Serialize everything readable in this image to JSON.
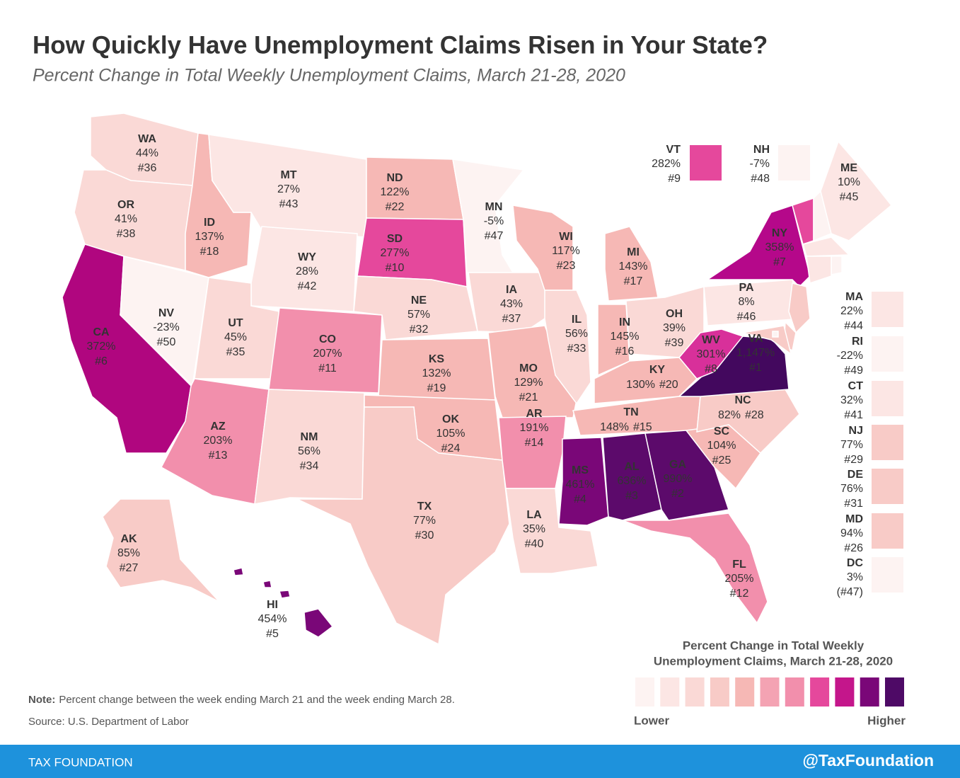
{
  "header": {
    "title": "How Quickly Have Unemployment Claims Risen in Your State?",
    "subtitle": "Percent Change in Total Weekly Unemployment Claims, March 21-28, 2020"
  },
  "states": [
    {
      "abbr": "WA",
      "change": "44%",
      "rank": "#36",
      "color": "#fad9d6"
    },
    {
      "abbr": "OR",
      "change": "41%",
      "rank": "#38",
      "color": "#fad9d6"
    },
    {
      "abbr": "CA",
      "change": "372%",
      "rank": "#6",
      "color": "#b0067f"
    },
    {
      "abbr": "NV",
      "change": "-23%",
      "rank": "#50",
      "color": "#fdf3f2"
    },
    {
      "abbr": "ID",
      "change": "137%",
      "rank": "#18",
      "color": "#f6b8b5"
    },
    {
      "abbr": "MT",
      "change": "27%",
      "rank": "#43",
      "color": "#fce6e4"
    },
    {
      "abbr": "WY",
      "change": "28%",
      "rank": "#42",
      "color": "#fce6e4"
    },
    {
      "abbr": "UT",
      "change": "45%",
      "rank": "#35",
      "color": "#fad9d6"
    },
    {
      "abbr": "CO",
      "change": "207%",
      "rank": "#11",
      "color": "#f28fac"
    },
    {
      "abbr": "AZ",
      "change": "203%",
      "rank": "#13",
      "color": "#f28fac"
    },
    {
      "abbr": "NM",
      "change": "56%",
      "rank": "#34",
      "color": "#fad9d6"
    },
    {
      "abbr": "ND",
      "change": "122%",
      "rank": "#22",
      "color": "#f6b8b5"
    },
    {
      "abbr": "SD",
      "change": "277%",
      "rank": "#10",
      "color": "#e5489c"
    },
    {
      "abbr": "NE",
      "change": "57%",
      "rank": "#32",
      "color": "#fad9d6"
    },
    {
      "abbr": "KS",
      "change": "132%",
      "rank": "#19",
      "color": "#f6b8b5"
    },
    {
      "abbr": "OK",
      "change": "105%",
      "rank": "#24",
      "color": "#f6b8b5"
    },
    {
      "abbr": "TX",
      "change": "77%",
      "rank": "#30",
      "color": "#f8cbc7"
    },
    {
      "abbr": "MN",
      "change": "-5%",
      "rank": "#47",
      "color": "#fdf3f2"
    },
    {
      "abbr": "IA",
      "change": "43%",
      "rank": "#37",
      "color": "#fad9d6"
    },
    {
      "abbr": "MO",
      "change": "129%",
      "rank": "#21",
      "color": "#f6b8b5"
    },
    {
      "abbr": "AR",
      "change": "191%",
      "rank": "#14",
      "color": "#f28fac"
    },
    {
      "abbr": "LA",
      "change": "35%",
      "rank": "#40",
      "color": "#fad9d6"
    },
    {
      "abbr": "WI",
      "change": "117%",
      "rank": "#23",
      "color": "#f6b8b5"
    },
    {
      "abbr": "IL",
      "change": "56%",
      "rank": "#33",
      "color": "#fad9d6"
    },
    {
      "abbr": "MI",
      "change": "143%",
      "rank": "#17",
      "color": "#f6b8b5"
    },
    {
      "abbr": "IN",
      "change": "145%",
      "rank": "#16",
      "color": "#f6b8b5"
    },
    {
      "abbr": "OH",
      "change": "39%",
      "rank": "#39",
      "color": "#fad9d6"
    },
    {
      "abbr": "KY",
      "change": "130%",
      "rank": "#20",
      "color": "#f6b8b5"
    },
    {
      "abbr": "TN",
      "change": "148%",
      "rank": "#15",
      "color": "#f6b8b5"
    },
    {
      "abbr": "MS",
      "change": "461%",
      "rank": "#4",
      "color": "#7a0778"
    },
    {
      "abbr": "AL",
      "change": "636%",
      "rank": "#3",
      "color": "#5c0a6b"
    },
    {
      "abbr": "GA",
      "change": "990%",
      "rank": "#2",
      "color": "#5c0a6b"
    },
    {
      "abbr": "FL",
      "change": "205%",
      "rank": "#12",
      "color": "#f28fac"
    },
    {
      "abbr": "SC",
      "change": "104%",
      "rank": "#25",
      "color": "#f6b8b5"
    },
    {
      "abbr": "NC",
      "change": "82%",
      "rank": "#28",
      "color": "#f8cbc7"
    },
    {
      "abbr": "VA",
      "change": "1,147%",
      "rank": "#1",
      "color": "#43085e"
    },
    {
      "abbr": "WV",
      "change": "301%",
      "rank": "#8",
      "color": "#d8309a"
    },
    {
      "abbr": "PA",
      "change": "8%",
      "rank": "#46",
      "color": "#fce6e4"
    },
    {
      "abbr": "NY",
      "change": "358%",
      "rank": "#7",
      "color": "#b5088a"
    },
    {
      "abbr": "VT",
      "change": "282%",
      "rank": "#9",
      "color": "#e5489c"
    },
    {
      "abbr": "NH",
      "change": "-7%",
      "rank": "#48",
      "color": "#fdf3f2"
    },
    {
      "abbr": "ME",
      "change": "10%",
      "rank": "#45",
      "color": "#fce6e4"
    },
    {
      "abbr": "MA",
      "change": "22%",
      "rank": "#44",
      "color": "#fce6e4"
    },
    {
      "abbr": "RI",
      "change": "-22%",
      "rank": "#49",
      "color": "#fdf3f2"
    },
    {
      "abbr": "CT",
      "change": "32%",
      "rank": "#41",
      "color": "#fce6e4"
    },
    {
      "abbr": "NJ",
      "change": "77%",
      "rank": "#29",
      "color": "#f8cbc7"
    },
    {
      "abbr": "DE",
      "change": "76%",
      "rank": "#31",
      "color": "#f8cbc7"
    },
    {
      "abbr": "MD",
      "change": "94%",
      "rank": "#26",
      "color": "#f8cbc7"
    },
    {
      "abbr": "DC",
      "change": "3%",
      "rank": "(#47)",
      "color": "#fdf3f2"
    },
    {
      "abbr": "AK",
      "change": "85%",
      "rank": "#27",
      "color": "#f8cbc7"
    },
    {
      "abbr": "HI",
      "change": "454%",
      "rank": "#5",
      "color": "#7a0778"
    }
  ],
  "legend": {
    "title": [
      "Percent Change in Total Weekly",
      "Unemployment Claims, March 21-28, 2020"
    ],
    "colors": [
      "#fdf3f2",
      "#fce6e4",
      "#fad9d6",
      "#f8cbc7",
      "#f6b8b5",
      "#f4a3b3",
      "#f28fac",
      "#e5489c",
      "#c4168b",
      "#7a0778",
      "#4e0a66"
    ],
    "low": "Lower",
    "high": "Higher"
  },
  "note": {
    "label": "Note:",
    "text": "Percent change between the week ending March 21 and the week ending March 28."
  },
  "source": "Source: U.S. Department of Labor",
  "footer": {
    "brand": "TAX FOUNDATION",
    "handle": "@TaxFoundation"
  }
}
